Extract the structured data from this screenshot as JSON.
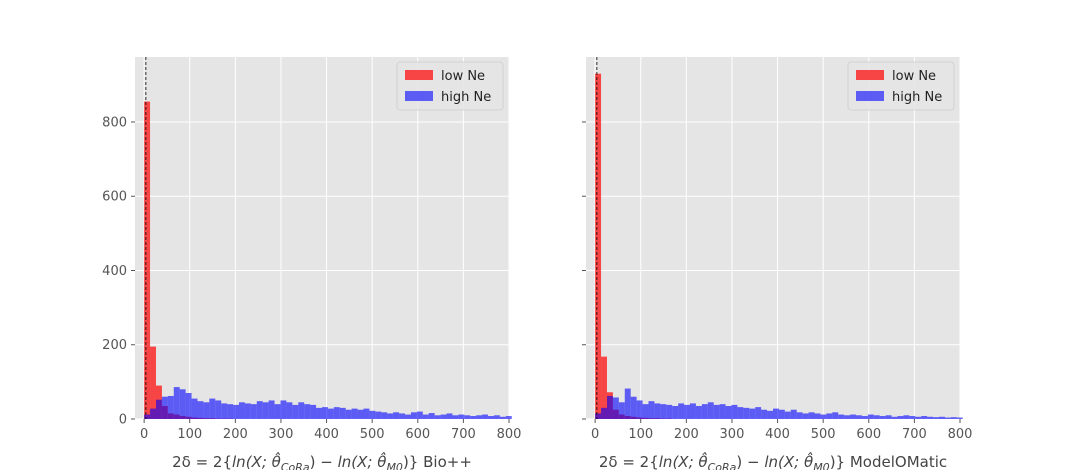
{
  "chart_data": [
    {
      "type": "histogram",
      "xlabel": "2δ = 2{ln(X; θ̂CoRa) − ln(X; θ̂M0)} Bio++",
      "xlabel_parts": {
        "prefix": "2δ = 2{",
        "ln1": "ln",
        "arg1": "(X; ",
        "theta1": "θ̂",
        "sub1": "CoRa",
        "mid": ") − ",
        "ln2": "ln",
        "arg2": "(X; ",
        "theta2": "θ̂",
        "sub2": "M0",
        "suffix": ")}",
        "program": "Bio++"
      },
      "xlim": [
        -20,
        800
      ],
      "ylim": [
        0,
        975
      ],
      "xticks": [
        0,
        100,
        200,
        300,
        400,
        500,
        600,
        700,
        800
      ],
      "yticks": [
        0,
        200,
        400,
        600,
        800
      ],
      "grid": true,
      "reference_line_x": 3.84,
      "legend_position": "top-right",
      "bin_width": 13,
      "series": [
        {
          "name": "low Ne",
          "color": "#ff0000",
          "opacity": 0.7,
          "bin_start": 0,
          "values": [
            855,
            195,
            90,
            35,
            15,
            12,
            8,
            6,
            4,
            3,
            2,
            2,
            1,
            1,
            1
          ]
        },
        {
          "name": "high Ne",
          "color": "#0000ff",
          "opacity": 0.6,
          "bin_start": 0,
          "values": [
            12,
            28,
            52,
            60,
            62,
            86,
            80,
            70,
            55,
            48,
            45,
            55,
            50,
            42,
            40,
            38,
            45,
            42,
            40,
            48,
            45,
            50,
            40,
            50,
            45,
            38,
            45,
            40,
            38,
            30,
            32,
            28,
            32,
            30,
            25,
            28,
            25,
            28,
            22,
            20,
            18,
            15,
            18,
            15,
            12,
            18,
            20,
            12,
            16,
            10,
            12,
            15,
            10,
            12,
            10,
            8,
            10,
            12,
            8,
            10,
            6,
            8
          ]
        }
      ]
    },
    {
      "type": "histogram",
      "xlabel": "2δ = 2{ln(X; θ̂CoRa) − ln(X; θ̂M0)} ModelOMatic",
      "xlabel_parts": {
        "prefix": "2δ = 2{",
        "ln1": "ln",
        "arg1": "(X; ",
        "theta1": "θ̂",
        "sub1": "CoRa",
        "mid": ") − ",
        "ln2": "ln",
        "arg2": "(X; ",
        "theta2": "θ̂",
        "sub2": "M0",
        "suffix": ")}",
        "program": "ModelOMatic"
      },
      "xlim": [
        -20,
        800
      ],
      "ylim": [
        0,
        975
      ],
      "xticks": [
        0,
        100,
        200,
        300,
        400,
        500,
        600,
        700,
        800
      ],
      "yticks": [
        0,
        200,
        400,
        600,
        800
      ],
      "grid": true,
      "reference_line_x": 3.84,
      "legend_position": "top-right",
      "bin_width": 13,
      "series": [
        {
          "name": "low Ne",
          "color": "#ff0000",
          "opacity": 0.7,
          "bin_start": 0,
          "values": [
            930,
            168,
            72,
            25,
            12,
            8,
            6,
            4,
            3,
            2,
            2,
            1,
            1
          ]
        },
        {
          "name": "high Ne",
          "color": "#0000ff",
          "opacity": 0.6,
          "bin_start": 0,
          "values": [
            15,
            30,
            62,
            58,
            45,
            82,
            60,
            50,
            40,
            48,
            42,
            40,
            38,
            35,
            42,
            38,
            42,
            35,
            40,
            45,
            38,
            40,
            35,
            38,
            32,
            30,
            28,
            32,
            25,
            22,
            28,
            25,
            20,
            25,
            18,
            15,
            18,
            15,
            12,
            15,
            18,
            12,
            10,
            12,
            10,
            8,
            12,
            10,
            8,
            10,
            6,
            8,
            10,
            8,
            6,
            8,
            6,
            5,
            6,
            4,
            5,
            4
          ]
        }
      ]
    }
  ]
}
